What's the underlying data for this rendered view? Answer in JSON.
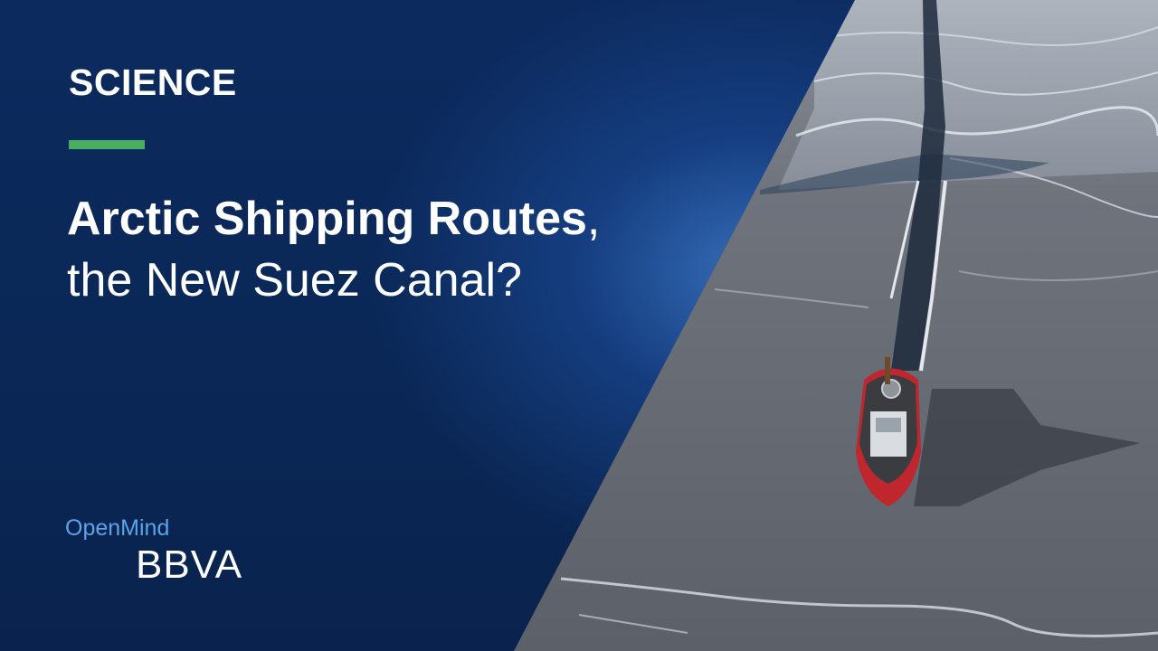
{
  "category": "SCIENCE",
  "title": {
    "line1_strong": "Arctic Shipping Routes",
    "line1_tail": ",",
    "line2": "the New Suez Canal?"
  },
  "brand": {
    "openmind": "OpenMind",
    "bbva": "BBVA"
  },
  "colors": {
    "panel": "#0a2756",
    "accent_rule": "#48ae64",
    "openmind_text": "#5ba4e8",
    "ship_hull": "#c0262e"
  },
  "photo": {
    "subject": "icebreaker-ship-in-arctic-ice"
  }
}
